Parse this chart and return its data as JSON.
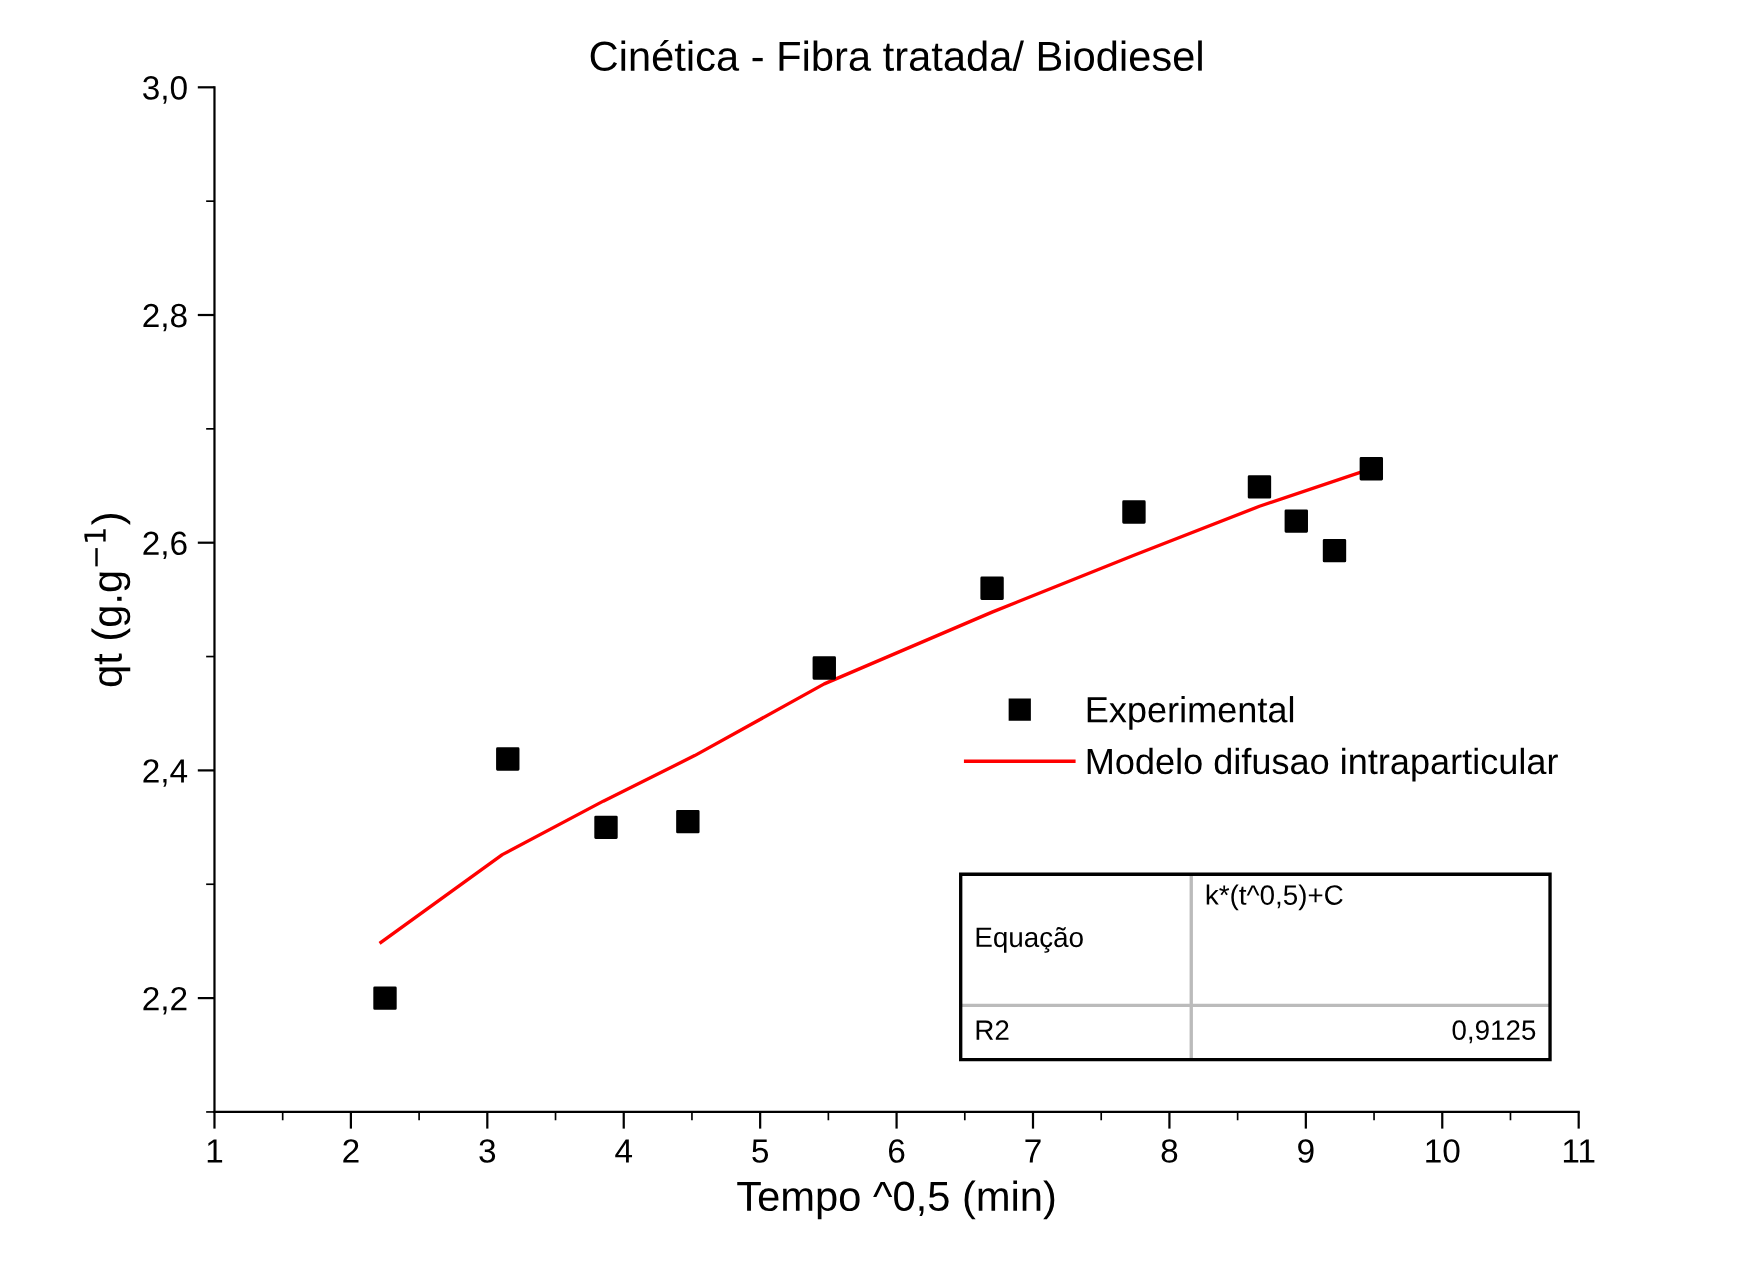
{
  "chart_data": {
    "type": "scatter",
    "title": "Cinética - Fibra tratada/ Biodiesel",
    "xlabel": "Tempo ^0,5 (min)",
    "ylabel": "qt (g.g$^{−1}$)",
    "xlim": [
      1,
      11
    ],
    "xticks": [
      1,
      2,
      3,
      4,
      5,
      6,
      7,
      8,
      9,
      10,
      11
    ],
    "ylim": [
      2.1,
      3.0
    ],
    "yticks": [
      {
        "value": 2.2,
        "label": "2,2"
      },
      {
        "value": 2.4,
        "label": "2,4"
      },
      {
        "value": 2.6,
        "label": "2,6"
      },
      {
        "value": 2.8,
        "label": "2,8"
      },
      {
        "value": 3.0,
        "label": "3,0"
      }
    ],
    "grid": false,
    "legend": "right",
    "series": [
      {
        "name": "Experimental",
        "type": "scatter",
        "marker": "square",
        "color": "#000000",
        "x": [
          2.25,
          3.15,
          3.87,
          4.47,
          5.47,
          6.7,
          7.74,
          8.66,
          8.93,
          9.21,
          9.48
        ],
        "values": [
          2.2,
          2.41,
          2.35,
          2.355,
          2.49,
          2.56,
          2.627,
          2.649,
          2.619,
          2.593,
          2.665
        ]
      },
      {
        "name": "Modelo difusao intraparticular",
        "type": "line",
        "marker": "none",
        "line_style": "solid",
        "color": "#ff0000",
        "x": [
          2.22,
          3.11,
          3.85,
          4.52,
          5.47,
          6.7,
          7.74,
          8.66,
          9.48
        ],
        "values": [
          2.249,
          2.326,
          2.373,
          2.413,
          2.476,
          2.539,
          2.589,
          2.632,
          2.665
        ]
      }
    ],
    "annotations": [
      "Equação",
      "k*(t^0,5)+C",
      "R2",
      "0,9125"
    ]
  }
}
